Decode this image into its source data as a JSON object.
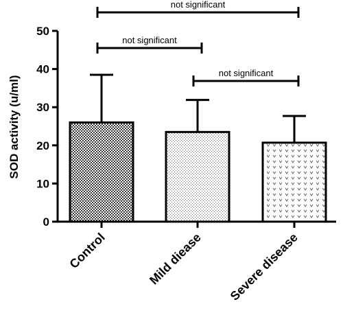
{
  "chart_data": {
    "type": "bar",
    "ylabel": "SOD activity (u/ml)",
    "xlabel": "",
    "title": "",
    "ylim": [
      0,
      50
    ],
    "yticks": [
      0,
      10,
      20,
      30,
      40,
      50
    ],
    "grid": false,
    "categories": [
      "Control",
      "Mild diease",
      "Severe disease"
    ],
    "values": [
      26,
      23.5,
      20.7
    ],
    "error_upper": [
      12.5,
      8.4,
      7.0
    ],
    "patterns": [
      "dense-crosshatch",
      "fine-dots",
      "chevrons"
    ],
    "annotations": [
      {
        "from": "Control",
        "to": "Severe disease",
        "label": "not significant"
      },
      {
        "from": "Control",
        "to": "Mild diease",
        "label": "not significant"
      },
      {
        "from": "Mild diease",
        "to": "Severe disease",
        "label": "not significant"
      }
    ]
  }
}
